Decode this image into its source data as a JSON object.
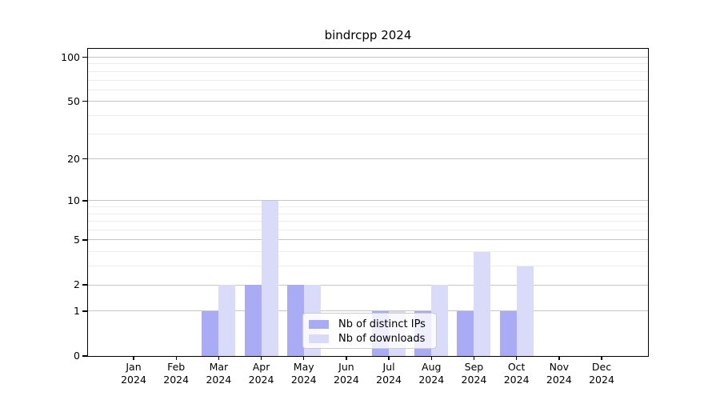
{
  "figure": {
    "title": "bindrcpp 2024"
  },
  "colors": {
    "distinct_ips": "#a9abf5",
    "downloads": "#d9dbf9",
    "grid_major": "#c6c6c6",
    "grid_minor": "#ececec",
    "axis": "#000000",
    "legend_border": "#cccccc",
    "background": "#ffffff",
    "text": "#000000"
  },
  "legend": {
    "items": [
      {
        "label": "Nb of distinct IPs",
        "color_key": "distinct_ips"
      },
      {
        "label": "Nb of downloads",
        "color_key": "downloads"
      }
    ]
  },
  "chart_data": {
    "type": "bar",
    "title": "bindrcpp 2024",
    "categories": [
      "Jan",
      "Feb",
      "Mar",
      "Apr",
      "May",
      "Jun",
      "Jul",
      "Aug",
      "Sep",
      "Oct",
      "Nov",
      "Dec"
    ],
    "year_label": "2024",
    "series": [
      {
        "name": "Nb of distinct IPs",
        "color_key": "distinct_ips",
        "values": [
          0,
          0,
          1,
          2,
          2,
          0,
          1,
          1,
          1,
          1,
          0,
          0
        ]
      },
      {
        "name": "Nb of downloads",
        "color_key": "downloads",
        "values": [
          0,
          0,
          2,
          10,
          2,
          0,
          1,
          2,
          4,
          3,
          0,
          0
        ]
      }
    ],
    "xlabel": "",
    "ylabel": "",
    "yscale": "log1p",
    "ylim": [
      0,
      114
    ],
    "yticks": [
      0,
      1,
      2,
      5,
      10,
      20,
      50,
      100
    ],
    "yticks_minor": [
      3,
      4,
      6,
      7,
      8,
      9,
      30,
      40,
      60,
      70,
      80,
      90
    ],
    "grid": true,
    "legend_position": "lower center-right inside"
  }
}
